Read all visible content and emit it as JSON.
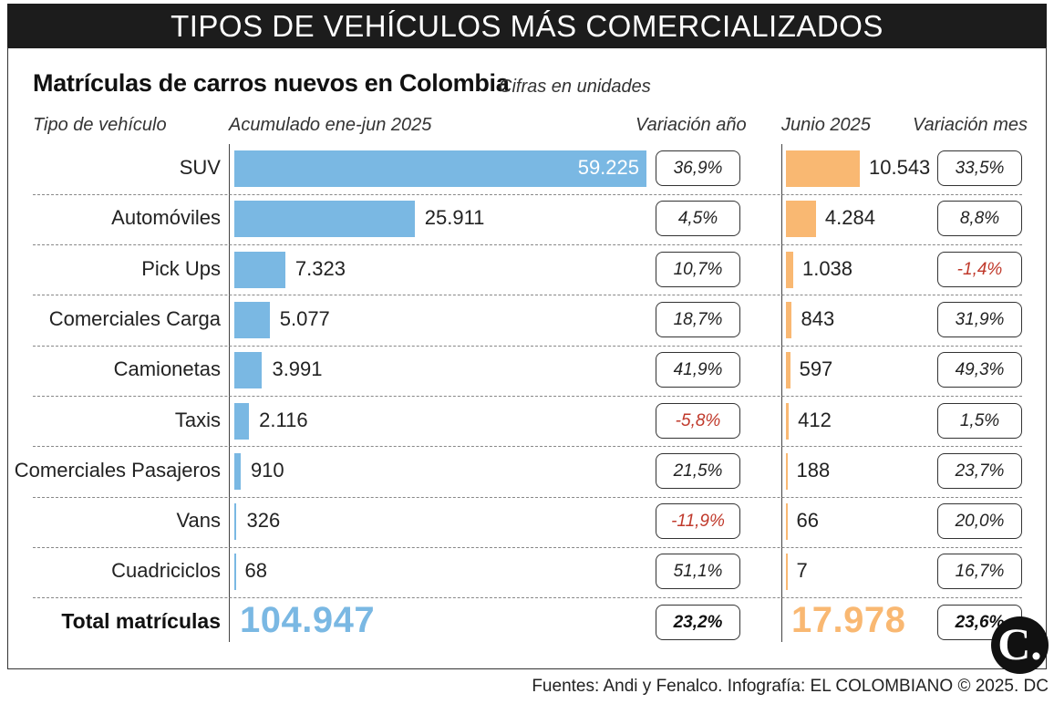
{
  "header": {
    "banner": "TIPOS DE VEHÍCULOS MÁS COMERCIALIZADOS",
    "title": "Matrículas de carros nuevos en Colombia",
    "subtitle": "Cifras en unidades"
  },
  "columns": {
    "type": "Tipo de vehículo",
    "cumulative": "Acumulado ene-jun 2025",
    "var_year": "Variación año",
    "june": "Junio 2025",
    "var_month": "Variación mes"
  },
  "colors": {
    "cumulative_bar": "#7ab8e3",
    "june_bar": "#f9b872",
    "negative": "#c0392b"
  },
  "chart_data": {
    "type": "bar",
    "categories": [
      "SUV",
      "Automóviles",
      "Pick Ups",
      "Comerciales Carga",
      "Camionetas",
      "Taxis",
      "Comerciales Pasajeros",
      "Vans",
      "Cuadriciclos"
    ],
    "series": [
      {
        "name": "Acumulado ene-jun 2025",
        "values": [
          59225,
          25911,
          7323,
          5077,
          3991,
          2116,
          910,
          326,
          68
        ],
        "labels": [
          "59.225",
          "25.911",
          "7.323",
          "5.077",
          "3.991",
          "2.116",
          "910",
          "326",
          "68"
        ],
        "variation": [
          "36,9%",
          "4,5%",
          "10,7%",
          "18,7%",
          "41,9%",
          "-5,8%",
          "21,5%",
          "-11,9%",
          "51,1%"
        ]
      },
      {
        "name": "Junio 2025",
        "values": [
          10543,
          4284,
          1038,
          843,
          597,
          412,
          188,
          66,
          7
        ],
        "labels": [
          "10.543",
          "4.284",
          "1.038",
          "843",
          "597",
          "412",
          "188",
          "66",
          "7"
        ],
        "variation": [
          "33,5%",
          "8,8%",
          "-1,4%",
          "31,9%",
          "49,3%",
          "1,5%",
          "23,7%",
          "20,0%",
          "16,7%"
        ]
      }
    ],
    "totals": {
      "label": "Total matrículas",
      "cumulative": "104.947",
      "var_year": "23,2%",
      "june": "17.978",
      "var_month": "23,6%"
    }
  },
  "logo": {
    "text": "C."
  },
  "footer": {
    "source": "Fuentes: Andi y Fenalco. Infografía: EL COLOMBIANO © 2025. DC"
  }
}
